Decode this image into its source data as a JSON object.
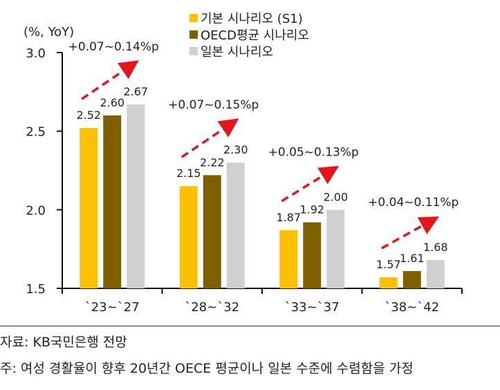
{
  "chart_data": {
    "type": "bar",
    "ylabel": "(%, YoY)",
    "ylim": [
      1.5,
      3.0
    ],
    "yticks": [
      "1.5",
      "2.0",
      "2.5",
      "3.0"
    ],
    "categories": [
      "`23~`27",
      "`28~`32",
      "`33~`37",
      "`38~`42"
    ],
    "series": [
      {
        "name": "기본 시나리오 (S1)",
        "color": "#FFC000",
        "values": [
          2.52,
          2.15,
          1.87,
          1.57
        ],
        "labels": [
          "2.52",
          "2.15",
          "1.87",
          "1.57"
        ]
      },
      {
        "name": "OECD평균 시나리오",
        "color": "#7F6000",
        "values": [
          2.6,
          2.22,
          1.92,
          1.61
        ],
        "labels": [
          "2.60",
          "2.22",
          "1.92",
          "1.61"
        ]
      },
      {
        "name": "일본 시나리오",
        "color": "#D0D0D0",
        "values": [
          2.67,
          2.3,
          2.0,
          1.68
        ],
        "labels": [
          "2.67",
          "2.30",
          "2.00",
          "1.68"
        ]
      }
    ],
    "annotations": [
      "+0.07~0.14%p",
      "+0.07~0.15%p",
      "+0.05~0.13%p",
      "+0.04~0.11%p"
    ],
    "annotation_color": "#E8141C",
    "legend_position": "top-right",
    "grid": false
  },
  "footer": {
    "source": "자료: KB국민은행 전망",
    "note": "주: 여성 경활율이 향후 20년간 OECE 평균이나 일본 수준에 수렴함을 가정"
  }
}
